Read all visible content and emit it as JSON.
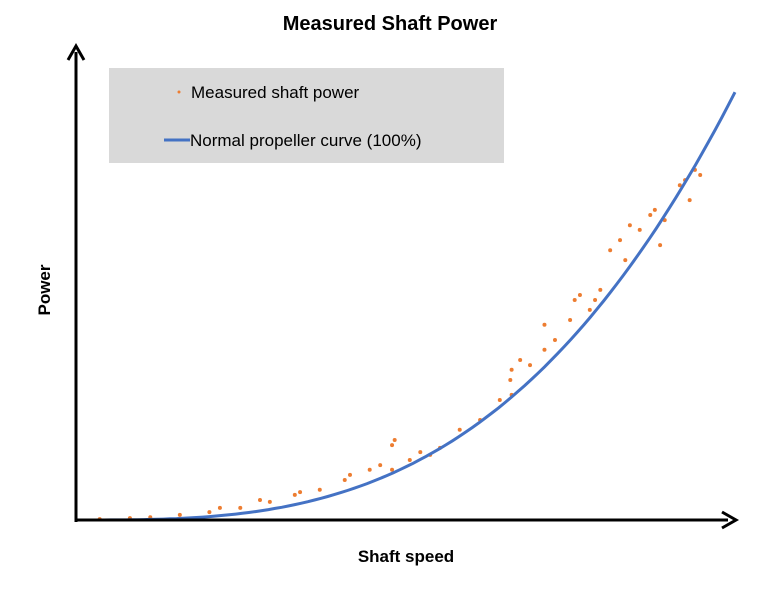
{
  "chart_data": {
    "type": "scatter",
    "title": "Measured Shaft Power",
    "xlabel": "Shaft speed",
    "ylabel": "Power",
    "xlim": [
      0,
      100
    ],
    "ylim": [
      0,
      100
    ],
    "grid": false,
    "axis_ticks": false,
    "legend_placement": "top-left",
    "legend_background": "#d9d9d9",
    "series": [
      {
        "name": "Measured shaft power",
        "kind": "scatter",
        "color": "#ed7d31",
        "points": [
          [
            3.3,
            0.2
          ],
          [
            7.9,
            0.4
          ],
          [
            11,
            0.6
          ],
          [
            15.5,
            1.1
          ],
          [
            20,
            1.7
          ],
          [
            21.6,
            2.6
          ],
          [
            24.7,
            2.6
          ],
          [
            27.7,
            4.3
          ],
          [
            29.2,
            3.9
          ],
          [
            33,
            5.4
          ],
          [
            33.8,
            6
          ],
          [
            36.8,
            6.5
          ],
          [
            40.6,
            8.6
          ],
          [
            41.4,
            9.7
          ],
          [
            44.4,
            10.8
          ],
          [
            46,
            11.8
          ],
          [
            47.8,
            16.1
          ],
          [
            47.8,
            10.8
          ],
          [
            48.2,
            17.2
          ],
          [
            50.5,
            12.9
          ],
          [
            52.1,
            14.6
          ],
          [
            53.6,
            14
          ],
          [
            55.1,
            15.5
          ],
          [
            58.1,
            19.4
          ],
          [
            61.2,
            21.5
          ],
          [
            64.2,
            25.8
          ],
          [
            65.8,
            30.1
          ],
          [
            66,
            32.3
          ],
          [
            66,
            26.9
          ],
          [
            67.3,
            34.4
          ],
          [
            68.8,
            33.3
          ],
          [
            71,
            36.6
          ],
          [
            71,
            42
          ],
          [
            72.6,
            38.7
          ],
          [
            74.9,
            43
          ],
          [
            75.6,
            47.3
          ],
          [
            76.4,
            48.4
          ],
          [
            77.9,
            45.2
          ],
          [
            78.7,
            47.3
          ],
          [
            79.5,
            49.5
          ],
          [
            81,
            58
          ],
          [
            82.5,
            60.2
          ],
          [
            83.3,
            55.9
          ],
          [
            84,
            63.4
          ],
          [
            85.5,
            62.4
          ],
          [
            87.1,
            65.6
          ],
          [
            87.8,
            66.7
          ],
          [
            88.6,
            59.1
          ],
          [
            89.3,
            64.5
          ],
          [
            91.6,
            72
          ],
          [
            92.4,
            73.1
          ],
          [
            93.1,
            68.8
          ],
          [
            93.9,
            75.3
          ],
          [
            94.7,
            74.2
          ]
        ]
      },
      {
        "name": "Normal propeller curve (100%)",
        "kind": "line",
        "color": "#4472c4",
        "equation": "power = 92 * (speed/100)^3"
      }
    ]
  }
}
